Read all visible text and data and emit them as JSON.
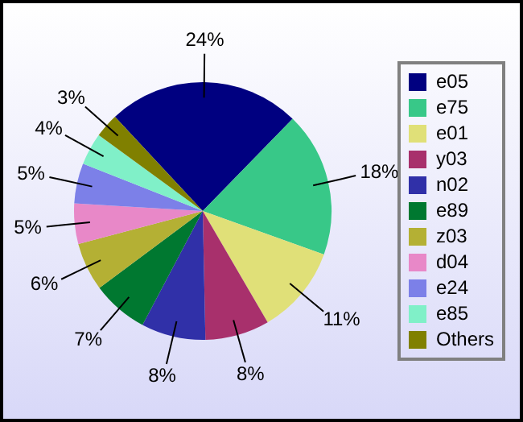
{
  "chart_data": {
    "type": "pie",
    "categories": [
      "e05",
      "e75",
      "e01",
      "y03",
      "n02",
      "e89",
      "z03",
      "d04",
      "e24",
      "e85",
      "Others"
    ],
    "values": [
      24,
      18,
      11,
      8,
      8,
      7,
      6,
      5,
      5,
      4,
      3
    ],
    "value_labels": [
      "24%",
      "18%",
      "11%",
      "8%",
      "8%",
      "7%",
      "6%",
      "5%",
      "5%",
      "4%",
      "3%"
    ],
    "colors": [
      "#000080",
      "#38c888",
      "#e0e078",
      "#a8306c",
      "#3030a8",
      "#007830",
      "#b4b034",
      "#e888c8",
      "#7c80e8",
      "#80f0c8",
      "#808000"
    ],
    "legend": "right"
  }
}
